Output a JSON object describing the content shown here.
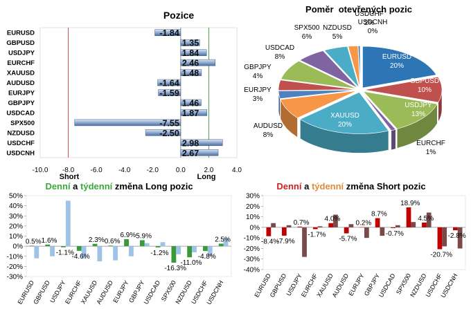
{
  "chart_data": [
    {
      "type": "bar",
      "orientation": "horizontal",
      "title": "Pozice",
      "categories": [
        "EURUSD",
        "GBPUSD",
        "USDJPY",
        "EURCHF",
        "XAUUSD",
        "AUDUSD",
        "EURJPY",
        "GBPJPY",
        "USDCAD",
        "SPX500",
        "NZDUSD",
        "USDCHF",
        "USDCNH"
      ],
      "values": [
        -1.84,
        1.35,
        1.84,
        2.46,
        1.48,
        -1.64,
        -1.59,
        1.46,
        1.87,
        -7.55,
        -2.5,
        2.98,
        2.67
      ],
      "value_labels": [
        "-1.84",
        "1.35",
        "1.84",
        "2.46",
        "1.48",
        "-1.64",
        "-1.59",
        "1.46",
        "1.87",
        "-7.55",
        "-2.50",
        "2.98",
        "2.67"
      ],
      "xlim": [
        -10,
        4
      ],
      "ticks": [
        "-10.0",
        "-8.0",
        "-6.0",
        "-4.0",
        "-2.0",
        "0.0",
        "2.0",
        "4.0"
      ],
      "threshold_labels": {
        "short": "Short",
        "long": "Long"
      },
      "colors": {
        "bar": "#9fb7d8",
        "short_line": "#c0504d",
        "long_line": "#4f9a46",
        "zero_line": "#8a8a8a"
      }
    },
    {
      "type": "pie",
      "title": "Poměr  otevřených pozic",
      "slices": [
        {
          "name": "EURUSD",
          "value": 20,
          "label": "EURUSD\n20%",
          "color": "#2e75b6"
        },
        {
          "name": "GBPUSD",
          "value": 10,
          "label": "GBPUSD\n10%",
          "color": "#c0504d"
        },
        {
          "name": "USDJPY",
          "value": 13,
          "label": "USDJPY\n13%",
          "color": "#9bbb59"
        },
        {
          "name": "EURCHF",
          "value": 1,
          "label": "EURCHF\n1%",
          "color": "#8064a2"
        },
        {
          "name": "XAUUSD",
          "value": 20,
          "label": "XAUUSD\n20%",
          "color": "#4bacc6"
        },
        {
          "name": "AUDUSD",
          "value": 8,
          "label": "AUDUSD\n8%",
          "color": "#f79646"
        },
        {
          "name": "EURJPY",
          "value": 3,
          "label": "EURJPY\n3%",
          "color": "#4f81bd"
        },
        {
          "name": "GBPJPY",
          "value": 4,
          "label": "GBPJPY\n4%",
          "color": "#c0504d"
        },
        {
          "name": "USDCAD",
          "value": 8,
          "label": "USDCAD\n8%",
          "color": "#9bbb59"
        },
        {
          "name": "SPX500",
          "value": 6,
          "label": "SPX500\n6%",
          "color": "#8064a2"
        },
        {
          "name": "NZDUSD",
          "value": 5,
          "label": "NZDUSD\n5%",
          "color": "#4bacc6"
        },
        {
          "name": "USDCHF",
          "value": 2,
          "label": "USDCHF\n2%",
          "color": "#f79646"
        },
        {
          "name": "USDCNH",
          "value": 0,
          "label": "USDCNH\n0%",
          "color": "#4f81bd"
        }
      ]
    },
    {
      "type": "bar",
      "title_parts": [
        {
          "text": "Denní",
          "color": "#3aa83a"
        },
        {
          "text": " a ",
          "color": "#000000"
        },
        {
          "text": "týdenní",
          "color": "#3aa83a"
        },
        {
          "text": " změna Long pozic",
          "color": "#000000"
        }
      ],
      "categories": [
        "EURUSD",
        "GBPUSD",
        "USDJPY",
        "EURCHF",
        "XAUUSD",
        "AUDUSD",
        "EURJPY",
        "GBPJPY",
        "USDCAD",
        "SPX500",
        "NZDUSD",
        "USDCHF",
        "USDCNH"
      ],
      "series": [
        {
          "values": [
            0.5,
            1.6,
            -1.1,
            -4.6,
            2.3,
            0.6,
            6.9,
            5.9,
            -1.2,
            -16.3,
            -11.0,
            -4.8,
            2.5
          ],
          "color": "#3a9a3a"
        },
        {
          "values": [
            -12,
            -10,
            45,
            -12,
            -15,
            -14,
            -10,
            3,
            4,
            -8,
            -6,
            -10,
            8
          ],
          "color": "#9dc3e6"
        }
      ],
      "data_labels": [
        "0.5%",
        "1.6%",
        "-1.1%",
        "-4.6%",
        "2.3%",
        "0.6%",
        "6.9%",
        "5.9%",
        "-1.2%",
        "-16.3%",
        "-11.0%",
        "-4.8%",
        "2.5%"
      ],
      "ylim": [
        -30,
        50
      ],
      "yticks": [
        "50%",
        "40%",
        "30%",
        "20%",
        "10%",
        "0%",
        "-10%",
        "-20%",
        "-30%"
      ]
    },
    {
      "type": "bar",
      "title_parts": [
        {
          "text": "Denní",
          "color": "#d02020"
        },
        {
          "text": " a ",
          "color": "#000000"
        },
        {
          "text": "týdenní",
          "color": "#e08a3a"
        },
        {
          "text": " změna Short pozic",
          "color": "#000000"
        }
      ],
      "categories": [
        "EURUSD",
        "GBPUSD",
        "USDJPY",
        "EURCHF",
        "XAUUSD",
        "AUDUSD",
        "EURJPY",
        "GBPJPY",
        "USDCAD",
        "SPX500",
        "NZDUSD",
        "USDCHF",
        "USDCNH"
      ],
      "series": [
        {
          "values": [
            -8.4,
            -7.9,
            0.7,
            -1.7,
            4.0,
            -5.7,
            0.2,
            8.7,
            -0.7,
            18.9,
            4.5,
            -20.7,
            -2.8
          ],
          "color": "#c00000"
        },
        {
          "values": [
            4,
            2,
            -28,
            1,
            12,
            3,
            -10,
            -8,
            2,
            5,
            14,
            -18,
            -20
          ],
          "color": "#7a4a4a"
        }
      ],
      "data_labels": [
        "-8.4%",
        "-7.9%",
        "0.7%",
        "-1.7%",
        "4.0%",
        "-5.7%",
        "0.2%",
        "8.7%",
        "-0.7%",
        "18.9%",
        "4.5%",
        "-20.7%",
        "-2.8%"
      ],
      "ylim": [
        -40,
        30
      ],
      "yticks": [
        "30%",
        "20%",
        "10%",
        "0%",
        "-10%",
        "-20%",
        "-30%",
        "-40%"
      ]
    }
  ]
}
